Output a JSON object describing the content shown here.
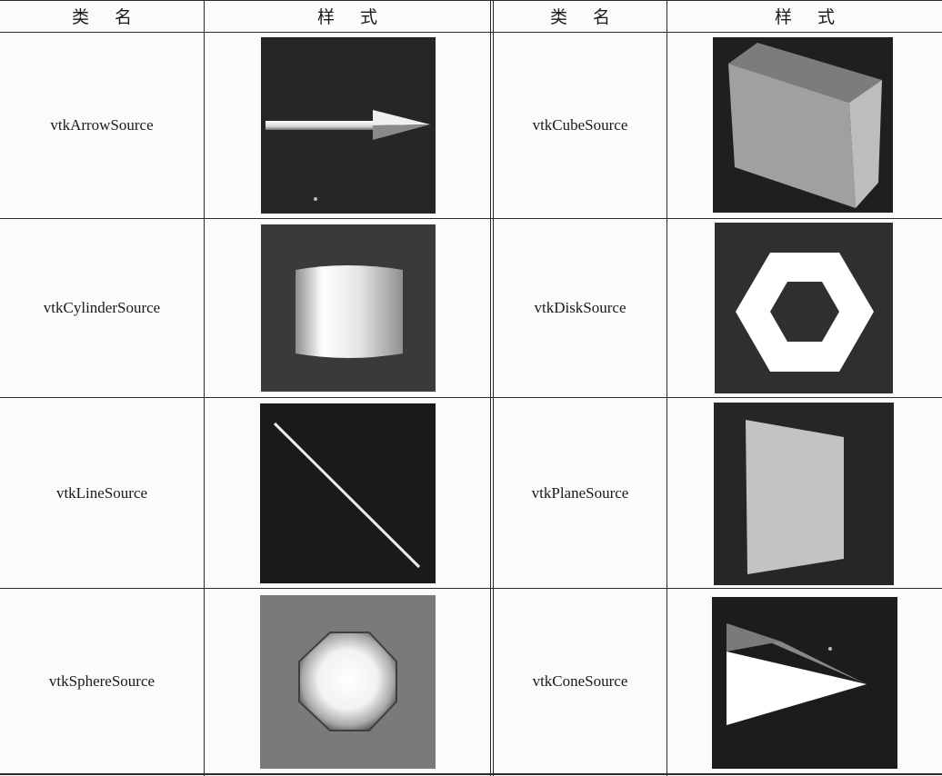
{
  "header": {
    "left_class_name": "类名",
    "left_style": "样式",
    "right_class_name": "类名",
    "right_style": "样式"
  },
  "rows": [
    {
      "left": {
        "name": "vtkArrowSource",
        "shape": "arrow"
      },
      "right": {
        "name": "vtkCubeSource",
        "shape": "cube"
      }
    },
    {
      "left": {
        "name": "vtkCylinderSource",
        "shape": "cylinder"
      },
      "right": {
        "name": "vtkDiskSource",
        "shape": "disk"
      }
    },
    {
      "left": {
        "name": "vtkLineSource",
        "shape": "line"
      },
      "right": {
        "name": "vtkPlaneSource",
        "shape": "plane"
      }
    },
    {
      "left": {
        "name": "vtkSphereSource",
        "shape": "sphere"
      },
      "right": {
        "name": "vtkConeSource",
        "shape": "cone"
      }
    }
  ],
  "colors": {
    "render_background": "#262626",
    "sphere_background": "#7a7a7a",
    "grid_line": "#2a2a2a"
  }
}
